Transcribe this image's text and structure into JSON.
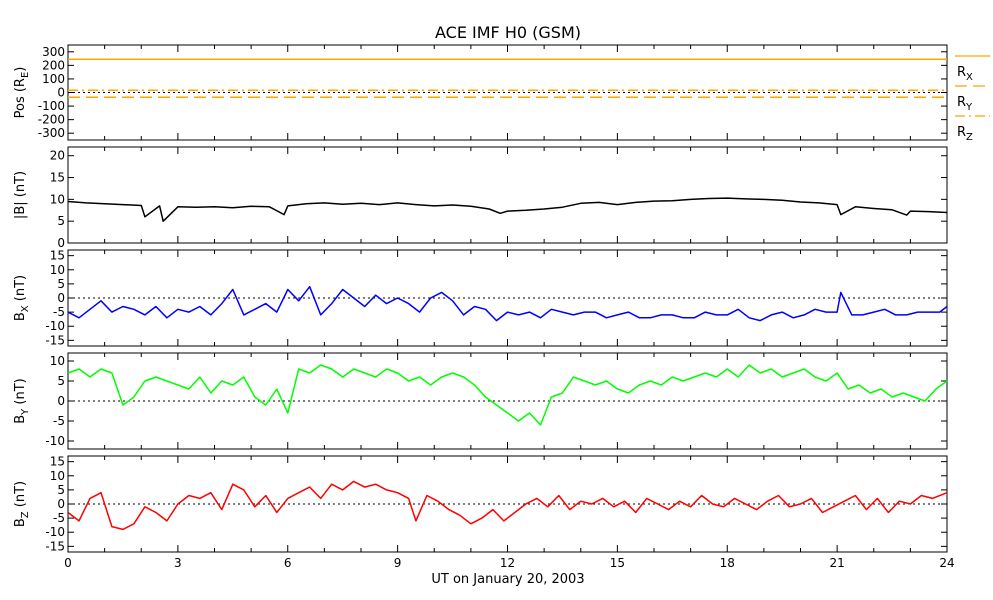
{
  "title": "ACE IMF H0 (GSM)",
  "xlabel": "UT on January 20, 2003",
  "x_ticks": [
    "0",
    "3",
    "6",
    "9",
    "12",
    "15",
    "18",
    "21",
    "24"
  ],
  "chart_data": [
    {
      "type": "line",
      "ylabel": "Pos (RE)",
      "ylabel_parts": [
        "Pos (R",
        "E",
        ")"
      ],
      "ylim": [
        -350,
        350
      ],
      "y_ticks": [
        300,
        200,
        100,
        0,
        -100,
        -200,
        -300
      ],
      "zero_line": true,
      "xlim": [
        0,
        24
      ],
      "series": [
        {
          "name": "RX",
          "color": "#ffa500",
          "dash": "solid",
          "x": [
            0,
            24
          ],
          "values": [
            245,
            245
          ]
        },
        {
          "name": "RY",
          "color": "#ffa500",
          "dash": "dash",
          "x": [
            0,
            24
          ],
          "values": [
            -35,
            -35
          ]
        },
        {
          "name": "RZ",
          "color": "#ffa500",
          "dash": "dashdot",
          "x": [
            0,
            24
          ],
          "values": [
            16,
            16
          ]
        }
      ],
      "legend": [
        {
          "label": "R",
          "sub": "X",
          "dash": "solid"
        },
        {
          "label": "R",
          "sub": "Y",
          "dash": "dash"
        },
        {
          "label": "R",
          "sub": "Z",
          "dash": "dashdot"
        }
      ]
    },
    {
      "type": "line",
      "ylabel": "|B| (nT)",
      "ylabel_parts": [
        "|B| (nT)",
        "",
        ""
      ],
      "ylim": [
        0,
        22
      ],
      "y_ticks": [
        20,
        15,
        10,
        5,
        0
      ],
      "zero_line": false,
      "xlim": [
        0,
        24
      ],
      "series": [
        {
          "name": "|B|",
          "color": "#000000",
          "x": [
            0,
            0.5,
            1,
            1.5,
            2,
            2.1,
            2.5,
            2.6,
            3,
            3.5,
            4,
            4.5,
            5,
            5.5,
            5.9,
            6,
            6.5,
            7,
            7.5,
            8,
            8.5,
            9,
            9.5,
            10,
            10.5,
            11,
            11.5,
            11.8,
            12,
            12.5,
            13,
            13.5,
            14,
            14.5,
            15,
            15.5,
            16,
            16.5,
            17,
            17.5,
            18,
            18.5,
            19,
            19.5,
            20,
            20.5,
            21,
            21.1,
            21.5,
            22,
            22.5,
            22.9,
            23,
            23.5,
            24
          ],
          "values": [
            9.5,
            9.2,
            9,
            8.8,
            8.6,
            6,
            8.5,
            5,
            8.3,
            8.2,
            8.3,
            8.1,
            8.4,
            8.3,
            6.5,
            8.5,
            9,
            9.2,
            8.9,
            9.1,
            8.8,
            9.2,
            8.8,
            8.5,
            8.7,
            8.4,
            7.8,
            6.8,
            7.3,
            7.5,
            7.8,
            8.2,
            9.1,
            9.3,
            8.8,
            9.3,
            9.6,
            9.7,
            10,
            10.2,
            10.3,
            10.1,
            10,
            9.8,
            9.4,
            9.2,
            8.8,
            6.5,
            8.3,
            7.9,
            7.6,
            6.4,
            7.3,
            7.2,
            7
          ]
        }
      ]
    },
    {
      "type": "line",
      "ylabel": "BX (nT)",
      "ylabel_parts": [
        "B",
        "X",
        " (nT)"
      ],
      "ylim": [
        -17,
        17
      ],
      "y_ticks": [
        15,
        10,
        5,
        0,
        -5,
        -10,
        -15
      ],
      "zero_line": true,
      "xlim": [
        0,
        24
      ],
      "series": [
        {
          "name": "BX",
          "color": "#0000ff",
          "x": [
            0,
            0.3,
            0.6,
            0.9,
            1.2,
            1.5,
            1.8,
            2.1,
            2.4,
            2.7,
            3,
            3.3,
            3.6,
            3.9,
            4.2,
            4.5,
            4.8,
            5.1,
            5.4,
            5.7,
            6,
            6.3,
            6.6,
            6.9,
            7.2,
            7.5,
            7.8,
            8.1,
            8.4,
            8.7,
            9,
            9.3,
            9.6,
            9.9,
            10.2,
            10.5,
            10.8,
            11.1,
            11.4,
            11.7,
            12,
            12.3,
            12.6,
            12.9,
            13.2,
            13.5,
            13.8,
            14.1,
            14.4,
            14.7,
            15,
            15.3,
            15.6,
            15.9,
            16.2,
            16.5,
            16.8,
            17.1,
            17.4,
            17.7,
            18,
            18.3,
            18.6,
            18.9,
            19.2,
            19.5,
            19.8,
            20.1,
            20.4,
            20.7,
            21,
            21.1,
            21.4,
            21.7,
            22,
            22.3,
            22.6,
            22.9,
            23.2,
            23.5,
            23.8,
            24
          ],
          "values": [
            -5,
            -7,
            -4,
            -1,
            -5,
            -3,
            -4,
            -6,
            -3,
            -7,
            -4,
            -5,
            -3,
            -6,
            -2,
            3,
            -6,
            -4,
            -2,
            -5,
            3,
            -1,
            4,
            -6,
            -2,
            3,
            0,
            -3,
            1,
            -2,
            0,
            -2,
            -5,
            0,
            2,
            -1,
            -6,
            -3,
            -4,
            -8,
            -5,
            -6,
            -5,
            -7,
            -4,
            -5,
            -6,
            -5,
            -5,
            -7,
            -6,
            -5,
            -7,
            -7,
            -6,
            -6,
            -7,
            -7,
            -5,
            -6,
            -6,
            -4,
            -7,
            -8,
            -6,
            -5,
            -7,
            -6,
            -4,
            -5,
            -5,
            2,
            -6,
            -6,
            -5,
            -4,
            -6,
            -6,
            -5,
            -5,
            -5,
            -3
          ]
        }
      ]
    },
    {
      "type": "line",
      "ylabel": "BY (nT)",
      "ylabel_parts": [
        "B",
        "Y",
        " (nT)"
      ],
      "ylim": [
        -12,
        12
      ],
      "y_ticks": [
        10,
        5,
        0,
        -5,
        -10
      ],
      "zero_line": true,
      "xlim": [
        0,
        24
      ],
      "series": [
        {
          "name": "BY",
          "color": "#00ff00",
          "x": [
            0,
            0.3,
            0.6,
            0.9,
            1.2,
            1.5,
            1.8,
            2.1,
            2.4,
            2.7,
            3,
            3.3,
            3.6,
            3.9,
            4.2,
            4.5,
            4.8,
            5.1,
            5.4,
            5.7,
            6,
            6.3,
            6.6,
            6.9,
            7.2,
            7.5,
            7.8,
            8.1,
            8.4,
            8.7,
            9,
            9.3,
            9.6,
            9.9,
            10.2,
            10.5,
            10.8,
            11.1,
            11.4,
            11.7,
            12,
            12.3,
            12.6,
            12.9,
            13.2,
            13.5,
            13.8,
            14.1,
            14.4,
            14.7,
            15,
            15.3,
            15.6,
            15.9,
            16.2,
            16.5,
            16.8,
            17.1,
            17.4,
            17.7,
            18,
            18.3,
            18.6,
            18.9,
            19.2,
            19.5,
            19.8,
            20.1,
            20.4,
            20.7,
            21,
            21.3,
            21.6,
            21.9,
            22.2,
            22.5,
            22.8,
            23.1,
            23.4,
            23.7,
            24
          ],
          "values": [
            7,
            8,
            6,
            8,
            7,
            -1,
            1,
            5,
            6,
            5,
            4,
            3,
            6,
            2,
            5,
            4,
            6,
            1,
            -1,
            3,
            -3,
            8,
            7,
            9,
            8,
            6,
            8,
            7,
            6,
            8,
            7,
            5,
            6,
            4,
            6,
            7,
            6,
            4,
            1,
            -1,
            -3,
            -5,
            -3,
            -6,
            1,
            2,
            6,
            5,
            4,
            5,
            3,
            2,
            4,
            5,
            4,
            6,
            5,
            6,
            7,
            6,
            8,
            6,
            9,
            7,
            8,
            6,
            7,
            8,
            6,
            5,
            7,
            3,
            4,
            2,
            3,
            1,
            2,
            1,
            0,
            3,
            5
          ]
        }
      ]
    },
    {
      "type": "line",
      "ylabel": "BZ (nT)",
      "ylabel_parts": [
        "B",
        "Z",
        " (nT)"
      ],
      "ylim": [
        -17,
        17
      ],
      "y_ticks": [
        15,
        10,
        5,
        0,
        -5,
        -10,
        -15
      ],
      "zero_line": true,
      "xlim": [
        0,
        24
      ],
      "series": [
        {
          "name": "BZ",
          "color": "#ff0000",
          "x": [
            0,
            0.3,
            0.6,
            0.9,
            1.2,
            1.5,
            1.8,
            2.1,
            2.4,
            2.7,
            3,
            3.3,
            3.6,
            3.9,
            4.2,
            4.5,
            4.8,
            5.1,
            5.4,
            5.7,
            6,
            6.3,
            6.6,
            6.9,
            7.2,
            7.5,
            7.8,
            8.1,
            8.4,
            8.7,
            9,
            9.3,
            9.5,
            9.8,
            10.1,
            10.4,
            10.7,
            11,
            11.3,
            11.6,
            11.9,
            12.2,
            12.5,
            12.8,
            13.1,
            13.4,
            13.7,
            14,
            14.3,
            14.6,
            14.9,
            15.2,
            15.5,
            15.8,
            16.1,
            16.4,
            16.7,
            17,
            17.3,
            17.6,
            17.9,
            18.2,
            18.5,
            18.8,
            19.1,
            19.4,
            19.7,
            20,
            20.3,
            20.6,
            20.9,
            21.2,
            21.5,
            21.8,
            22.1,
            22.4,
            22.7,
            23,
            23.3,
            23.6,
            24
          ],
          "values": [
            -3,
            -6,
            2,
            4,
            -8,
            -9,
            -7,
            -1,
            -3,
            -6,
            0,
            3,
            2,
            4,
            -2,
            7,
            5,
            -1,
            3,
            -3,
            2,
            4,
            6,
            2,
            7,
            5,
            8,
            6,
            7,
            5,
            4,
            2,
            -6,
            3,
            1,
            -2,
            -4,
            -7,
            -5,
            -2,
            -6,
            -3,
            0,
            2,
            -1,
            3,
            -2,
            1,
            0,
            2,
            -1,
            1,
            -3,
            2,
            0,
            -2,
            1,
            -1,
            3,
            0,
            -1,
            2,
            0,
            -2,
            1,
            3,
            -1,
            0,
            2,
            -3,
            -1,
            1,
            3,
            -2,
            2,
            -3,
            1,
            0,
            3,
            2,
            4
          ]
        }
      ]
    }
  ]
}
